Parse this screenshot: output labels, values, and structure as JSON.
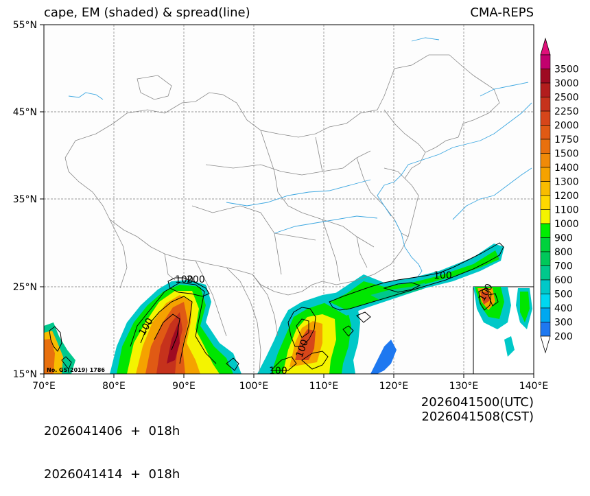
{
  "title": {
    "left": "cape, EM (shaded) & spread(line)",
    "right": "CMA-REPS"
  },
  "lat_labels": [
    "55°N",
    "45°N",
    "35°N",
    "25°N",
    "15°N"
  ],
  "lon_labels": [
    "70°E",
    "80°E",
    "90°E",
    "100°E",
    "110°E",
    "120°E",
    "130°E",
    "140°E"
  ],
  "colorbar": {
    "labels": [
      "3500",
      "3000",
      "2500",
      "2250",
      "2000",
      "1750",
      "1500",
      "1400",
      "1300",
      "1200",
      "1100",
      "1000",
      "900",
      "800",
      "700",
      "600",
      "500",
      "400",
      "300",
      "200"
    ],
    "colors": [
      "#c2006e",
      "#9e0a22",
      "#b21d1d",
      "#c6321c",
      "#d6461a",
      "#e05a14",
      "#e8700e",
      "#f08a08",
      "#f5a200",
      "#f8bc00",
      "#ffd800",
      "#f4f400",
      "#00ee00",
      "#00d23c",
      "#00c85a",
      "#00c88c",
      "#00c8c8",
      "#00d7f0",
      "#00a8f0",
      "#1e78f0"
    ],
    "top_arrow_color": "#e0107a"
  },
  "contour_labels": [
    "100",
    "100",
    "100",
    "100",
    "100",
    "200",
    "100"
  ],
  "credit": "No. GS(2019) 1786",
  "footer": {
    "init_utc": "2026041406  +  018h",
    "init_cst": "2026041414  +  018h",
    "valid_utc": "2026041500(UTC)",
    "valid_cst": "2026041508(CST)"
  }
}
